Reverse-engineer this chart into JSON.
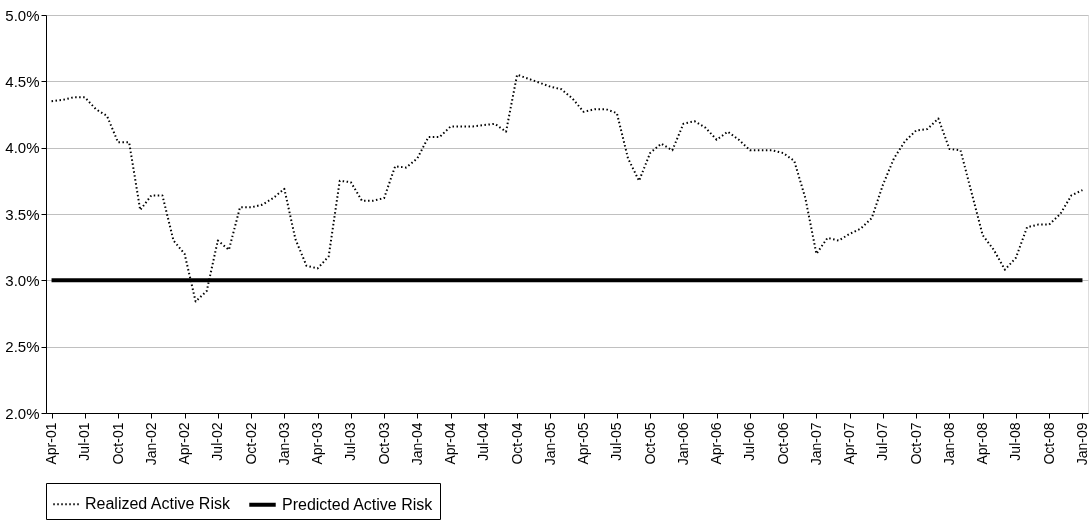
{
  "chart_data": {
    "type": "line",
    "categories": [
      "Apr-01",
      null,
      null,
      "Jul-01",
      null,
      null,
      "Oct-01",
      null,
      null,
      "Jan-02",
      null,
      null,
      "Apr-02",
      null,
      null,
      "Jul-02",
      null,
      null,
      "Oct-02",
      null,
      null,
      "Jan-03",
      null,
      null,
      "Apr-03",
      null,
      null,
      "Jul-03",
      null,
      null,
      "Oct-03",
      null,
      null,
      "Jan-04",
      null,
      null,
      "Apr-04",
      null,
      null,
      "Jul-04",
      null,
      null,
      "Oct-04",
      null,
      null,
      "Jan-05",
      null,
      null,
      "Apr-05",
      null,
      null,
      "Jul-05",
      null,
      null,
      "Oct-05",
      null,
      null,
      "Jan-06",
      null,
      null,
      "Apr-06",
      null,
      null,
      "Jul-06",
      null,
      null,
      "Oct-06",
      null,
      null,
      "Jan-07",
      null,
      null,
      "Apr-07",
      null,
      null,
      "Jul-07",
      null,
      null,
      "Oct-07",
      null,
      null,
      "Jan-08",
      null,
      null,
      "Apr-08",
      null,
      null,
      "Jul-08",
      null,
      null,
      "Oct-08",
      null,
      null,
      "Jan-09"
    ],
    "series": [
      {
        "name": "Realized Active Risk",
        "color": "#000000",
        "line_style": "dotted",
        "values": [
          4.35,
          4.36,
          4.38,
          4.38,
          4.29,
          4.24,
          4.04,
          4.04,
          3.53,
          3.64,
          3.64,
          3.3,
          3.2,
          2.84,
          2.92,
          3.3,
          3.23,
          3.55,
          3.55,
          3.57,
          3.62,
          3.69,
          3.31,
          3.11,
          3.09,
          3.18,
          3.75,
          3.74,
          3.6,
          3.6,
          3.62,
          3.86,
          3.85,
          3.92,
          4.08,
          4.08,
          4.16,
          4.16,
          4.16,
          4.17,
          4.18,
          4.12,
          4.55,
          4.52,
          4.49,
          4.46,
          4.44,
          4.37,
          4.27,
          4.29,
          4.29,
          4.26,
          3.92,
          3.75,
          3.96,
          4.03,
          3.98,
          4.18,
          4.2,
          4.15,
          4.06,
          4.12,
          4.06,
          3.98,
          3.98,
          3.98,
          3.96,
          3.9,
          3.62,
          3.2,
          3.32,
          3.3,
          3.35,
          3.39,
          3.47,
          3.72,
          3.92,
          4.05,
          4.13,
          4.14,
          4.22,
          3.99,
          3.98,
          3.66,
          3.34,
          3.23,
          3.08,
          3.17,
          3.4,
          3.42,
          3.42,
          3.5,
          3.64,
          3.68
        ]
      },
      {
        "name": "Predicted Active Risk",
        "color": "#000000",
        "line_style": "solid",
        "values": [
          3.0,
          3.0,
          3.0,
          3.0,
          3.0,
          3.0,
          3.0,
          3.0,
          3.0,
          3.0,
          3.0,
          3.0,
          3.0,
          3.0,
          3.0,
          3.0,
          3.0,
          3.0,
          3.0,
          3.0,
          3.0,
          3.0,
          3.0,
          3.0,
          3.0,
          3.0,
          3.0,
          3.0,
          3.0,
          3.0,
          3.0,
          3.0,
          3.0,
          3.0,
          3.0,
          3.0,
          3.0,
          3.0,
          3.0,
          3.0,
          3.0,
          3.0,
          3.0,
          3.0,
          3.0,
          3.0,
          3.0,
          3.0,
          3.0,
          3.0,
          3.0,
          3.0,
          3.0,
          3.0,
          3.0,
          3.0,
          3.0,
          3.0,
          3.0,
          3.0,
          3.0,
          3.0,
          3.0,
          3.0,
          3.0,
          3.0,
          3.0,
          3.0,
          3.0,
          3.0,
          3.0,
          3.0,
          3.0,
          3.0,
          3.0,
          3.0,
          3.0,
          3.0,
          3.0,
          3.0,
          3.0,
          3.0,
          3.0,
          3.0,
          3.0,
          3.0,
          3.0,
          3.0,
          3.0,
          3.0,
          3.0,
          3.0,
          3.0,
          3.0
        ]
      }
    ],
    "ylim": [
      2.0,
      5.0
    ],
    "yticks": [
      {
        "value": 2.0,
        "label": "2.0%"
      },
      {
        "value": 2.5,
        "label": "2.5%"
      },
      {
        "value": 3.0,
        "label": "3.0%"
      },
      {
        "value": 3.5,
        "label": "3.5%"
      },
      {
        "value": 4.0,
        "label": "4.0%"
      },
      {
        "value": 4.5,
        "label": "4.5%"
      },
      {
        "value": 5.0,
        "label": "5.0%"
      }
    ],
    "grid": "y",
    "legend": "bottom"
  }
}
